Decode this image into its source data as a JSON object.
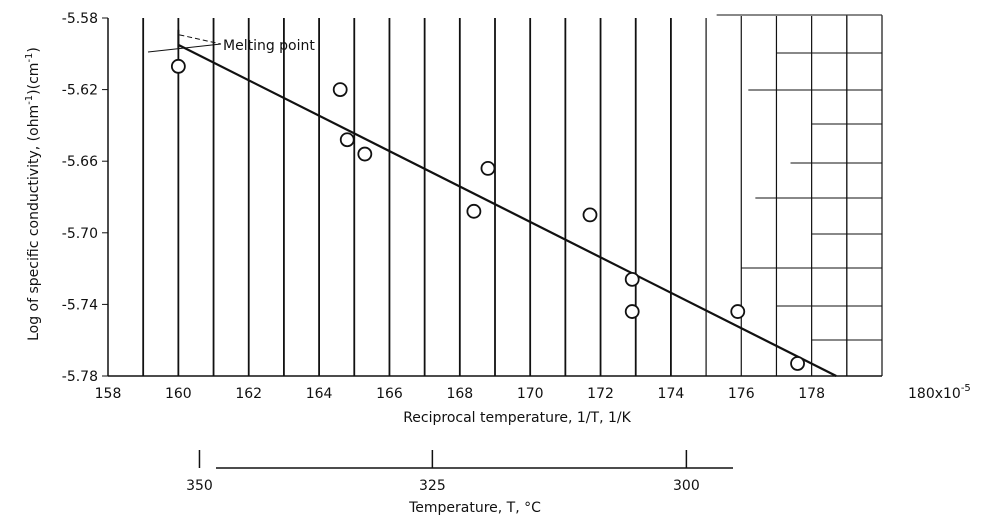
{
  "chart_data": {
    "type": "scatter",
    "xlabel": "Reciprocal temperature, 1/T, 1/K",
    "ylabel": "Log of specific conductivity, (ohm",
    "ylabel_sup1": "-1",
    "ylabel_mid": ")(cm",
    "ylabel_sup2": "-1",
    "ylabel_end": ")",
    "xlim": [
      158,
      180
    ],
    "ylim": [
      -5.78,
      -5.58
    ],
    "x_ticks": [
      158,
      160,
      162,
      164,
      166,
      168,
      170,
      172,
      174,
      176,
      178
    ],
    "x_last_tick": "180x10",
    "x_last_tick_exp": "-5",
    "y_ticks": [
      "-5.58",
      "-5.62",
      "-5.66",
      "-5.70",
      "-5.74",
      "-5.78"
    ],
    "y_tick_values": [
      -5.58,
      -5.62,
      -5.66,
      -5.7,
      -5.74,
      -5.78
    ],
    "grid": "vertical lines every 1 unit",
    "points": [
      {
        "x": 160.0,
        "y": -5.607
      },
      {
        "x": 164.6,
        "y": -5.62
      },
      {
        "x": 164.8,
        "y": -5.648
      },
      {
        "x": 165.3,
        "y": -5.656
      },
      {
        "x": 168.4,
        "y": -5.688
      },
      {
        "x": 168.8,
        "y": -5.664
      },
      {
        "x": 171.7,
        "y": -5.69
      },
      {
        "x": 172.9,
        "y": -5.726
      },
      {
        "x": 172.9,
        "y": -5.744
      },
      {
        "x": 175.9,
        "y": -5.744
      },
      {
        "x": 177.6,
        "y": -5.773
      }
    ],
    "fit_line": {
      "x": [
        160.0,
        178.7
      ],
      "y": [
        -5.595,
        -5.78
      ]
    },
    "annotation": "Melting point",
    "secondary_axis": {
      "label": "Temperature, T, °C",
      "ticks": [
        {
          "celsius": "350",
          "reciprocal": 160.6
        },
        {
          "celsius": "325",
          "reciprocal": 167.22
        },
        {
          "celsius": "300",
          "reciprocal": 174.44
        }
      ]
    }
  }
}
